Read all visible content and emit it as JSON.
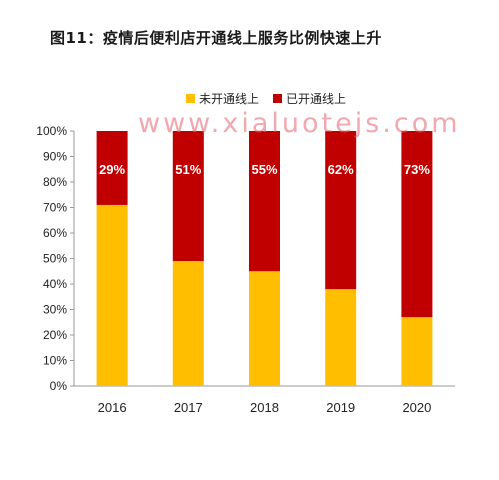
{
  "title": "图11：疫情后便利店开通线上服务比例快速上升",
  "watermark": "www.xialuotejs.com",
  "colors": {
    "not_online": "#FFBF00",
    "online": "#C00000"
  },
  "chart_data": {
    "type": "bar",
    "stacked": true,
    "categories": [
      "2016",
      "2017",
      "2018",
      "2019",
      "2020"
    ],
    "series": [
      {
        "name": "未开通线上",
        "values": [
          71,
          49,
          45,
          38,
          27
        ]
      },
      {
        "name": "已开通线上",
        "values": [
          29,
          51,
          55,
          62,
          73
        ]
      }
    ],
    "data_labels": [
      "29%",
      "51%",
      "55%",
      "62%",
      "73%"
    ],
    "yticks": [
      "0%",
      "10%",
      "20%",
      "30%",
      "40%",
      "50%",
      "60%",
      "70%",
      "80%",
      "90%",
      "100%"
    ],
    "ylim": [
      0,
      100
    ],
    "legend_position": "top",
    "grid": false
  }
}
